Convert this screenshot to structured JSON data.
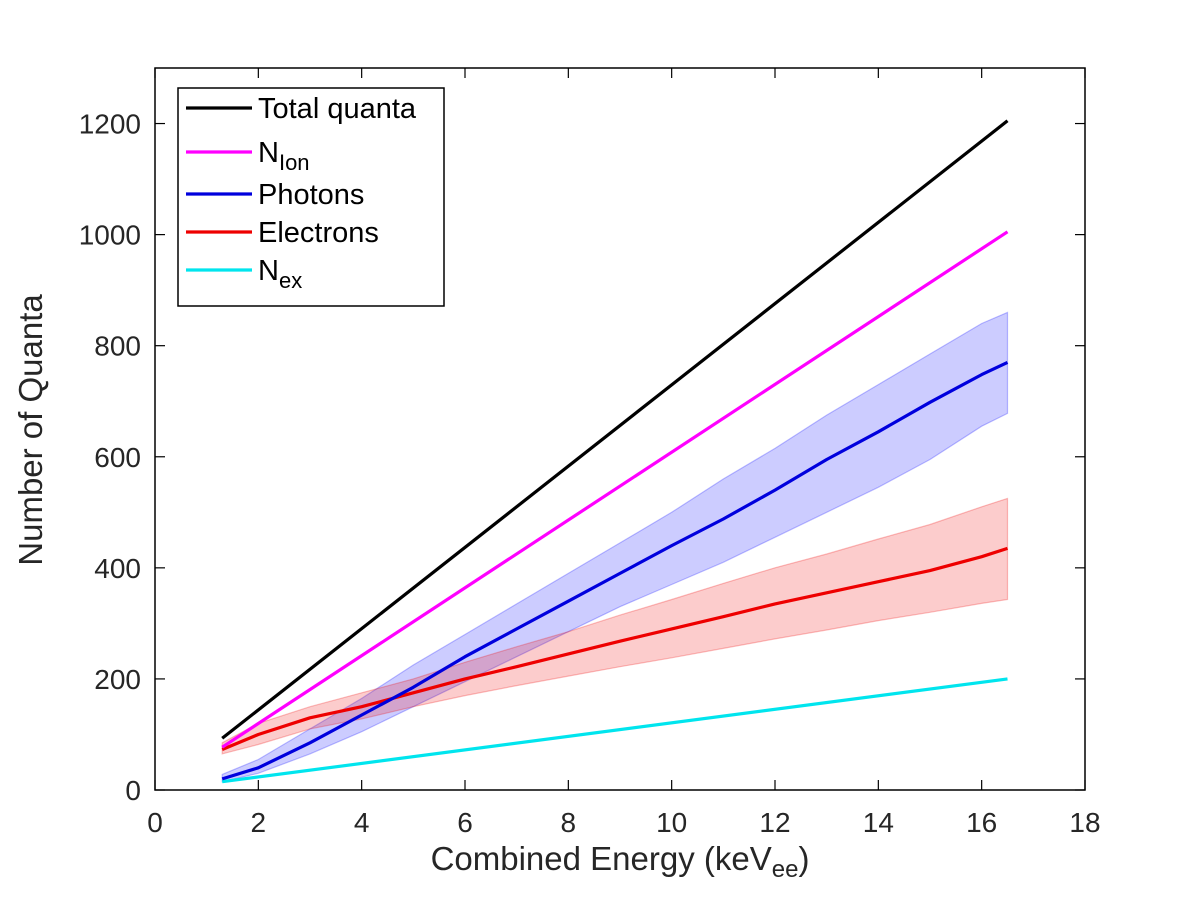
{
  "chart_data": {
    "type": "line",
    "title": "",
    "xlabel": "Combined Energy (keV",
    "xlabel_sub": "ee",
    "xlabel_suffix": ")",
    "ylabel": "Number of Quanta",
    "xlim": [
      0,
      18
    ],
    "ylim": [
      0,
      1300
    ],
    "xticks": [
      0,
      2,
      4,
      6,
      8,
      10,
      12,
      14,
      16,
      18
    ],
    "yticks": [
      0,
      200,
      400,
      600,
      800,
      1000,
      1200
    ],
    "grid": false,
    "legend_position": "top-left",
    "series": [
      {
        "key": "total",
        "name": "Total quanta",
        "name_sub": "",
        "color": "#000000",
        "x": [
          1.3,
          16.5
        ],
        "y": [
          93,
          1205
        ]
      },
      {
        "key": "nion",
        "name": "N",
        "name_sub": "Ion",
        "color": "#ff00ff",
        "x": [
          1.3,
          16.5
        ],
        "y": [
          77,
          1005
        ]
      },
      {
        "key": "photons",
        "name": "Photons",
        "name_sub": "",
        "color": "#0000dd",
        "band_color": "#0000ff",
        "x": [
          1.3,
          2,
          3,
          4,
          5,
          6,
          7,
          8,
          9,
          10,
          11,
          12,
          13,
          14,
          15,
          16,
          16.5
        ],
        "y": [
          20,
          40,
          85,
          135,
          185,
          240,
          290,
          340,
          390,
          440,
          488,
          540,
          595,
          645,
          698,
          748,
          770
        ],
        "y_low": [
          15,
          30,
          65,
          105,
          150,
          195,
          240,
          285,
          330,
          370,
          410,
          455,
          500,
          545,
          595,
          655,
          678
        ],
        "y_high": [
          28,
          55,
          110,
          165,
          225,
          280,
          335,
          390,
          445,
          500,
          560,
          615,
          675,
          730,
          785,
          840,
          860
        ]
      },
      {
        "key": "electrons",
        "name": "Electrons",
        "name_sub": "",
        "color": "#ee0000",
        "band_color": "#ee0000",
        "x": [
          1.3,
          2,
          3,
          4,
          5,
          6,
          7,
          8,
          9,
          10,
          11,
          12,
          13,
          14,
          15,
          16,
          16.5
        ],
        "y": [
          73,
          100,
          130,
          150,
          175,
          200,
          222,
          245,
          268,
          290,
          312,
          335,
          355,
          375,
          395,
          420,
          435
        ],
        "y_low": [
          65,
          82,
          110,
          128,
          150,
          170,
          188,
          205,
          222,
          238,
          255,
          272,
          288,
          305,
          320,
          336,
          343
        ],
        "y_high": [
          85,
          120,
          150,
          175,
          200,
          230,
          258,
          285,
          315,
          343,
          372,
          400,
          425,
          452,
          478,
          510,
          525
        ]
      },
      {
        "key": "nex",
        "name": "N",
        "name_sub": "ex",
        "color": "#00e5ee",
        "x": [
          1.3,
          16.5
        ],
        "y": [
          15,
          200
        ]
      }
    ]
  }
}
